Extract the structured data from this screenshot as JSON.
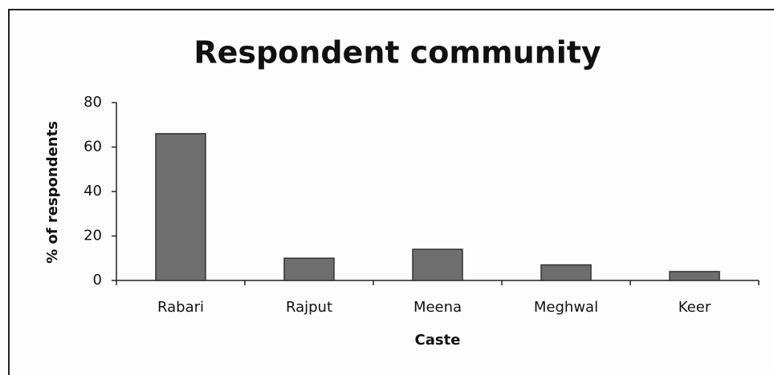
{
  "chart_data": {
    "type": "bar",
    "title": "Respondent community",
    "x_label": "Caste",
    "y_label": "% of respondents",
    "categories": [
      "Rabari",
      "Rajput",
      "Meena",
      "Meghwal",
      "Keer"
    ],
    "values": [
      66,
      10,
      14,
      7,
      4
    ],
    "color": "#6e6e6e",
    "ylim": [
      0,
      80
    ],
    "yticks": [
      0,
      20,
      40,
      60,
      80
    ],
    "grid": false
  }
}
